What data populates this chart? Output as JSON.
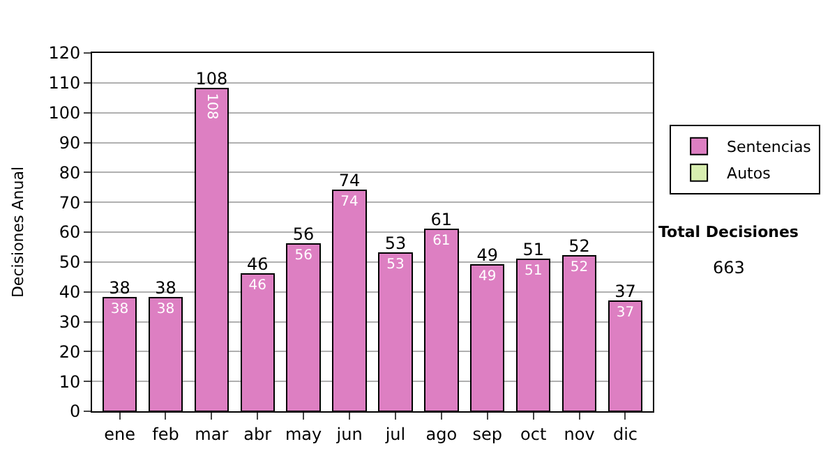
{
  "chart_data": {
    "type": "bar",
    "stacked": true,
    "ylabel": "Decisiones Anual",
    "categories": [
      "ene",
      "feb",
      "mar",
      "abr",
      "may",
      "jun",
      "jul",
      "ago",
      "sep",
      "oct",
      "nov",
      "dic"
    ],
    "series": [
      {
        "name": "Sentencias",
        "color": "#dd7fc2",
        "values": [
          38,
          38,
          108,
          46,
          56,
          74,
          53,
          61,
          49,
          51,
          52,
          37
        ],
        "value_labels": [
          "38",
          "38",
          "108",
          "46",
          "56",
          "74",
          "53",
          "61",
          "49",
          "51",
          "52",
          "37"
        ]
      },
      {
        "name": "Autos",
        "color": "#d8eeb0",
        "values": [
          null,
          null,
          null,
          null,
          null,
          null,
          null,
          null,
          null,
          null,
          null,
          null
        ]
      }
    ],
    "totals": [
      "38",
      "38",
      "108",
      "46",
      "56",
      "74",
      "53",
      "61",
      "49",
      "51",
      "52",
      "37"
    ],
    "ylim": [
      0,
      120
    ],
    "yticks": [
      0,
      10,
      20,
      30,
      40,
      50,
      60,
      70,
      80,
      90,
      100,
      110,
      120
    ],
    "grid": "y",
    "legend": "right",
    "annotations": [
      "Total Decisiones",
      "663"
    ]
  }
}
